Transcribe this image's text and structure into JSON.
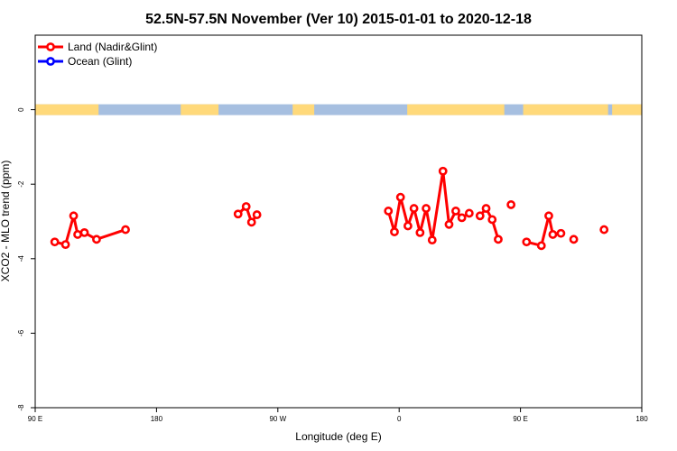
{
  "chart_data": {
    "type": "line",
    "title": "52.5N-57.5N November (Ver 10)   2015-01-01 to 2020-12-18",
    "xlabel": "Longitude (deg E)",
    "ylabel": "XCO2 - MLO trend (ppm)",
    "xlim": [
      90,
      540
    ],
    "ylim": [
      -8,
      2
    ],
    "x_ticks": [
      {
        "value": 90,
        "label": "90 E"
      },
      {
        "value": 180,
        "label": "180"
      },
      {
        "value": 270,
        "label": "90 W"
      },
      {
        "value": 360,
        "label": "0"
      },
      {
        "value": 450,
        "label": "90 E"
      },
      {
        "value": 540,
        "label": "180"
      }
    ],
    "y_ticks": [
      {
        "value": 0,
        "label": "0"
      },
      {
        "value": -2,
        "label": "-2"
      },
      {
        "value": -4,
        "label": "-4"
      },
      {
        "value": -6,
        "label": "-6"
      },
      {
        "value": -8,
        "label": "-8"
      }
    ],
    "grid": false,
    "legend_position": "top-left",
    "land_ocean_strip": {
      "y": 0,
      "land_color": "#ffd97a",
      "ocean_color": "#a6bfe0",
      "land_spans": [
        [
          90,
          137
        ],
        [
          198,
          226
        ],
        [
          281,
          297
        ],
        [
          366,
          438
        ],
        [
          452,
          515
        ],
        [
          518,
          540
        ]
      ]
    },
    "series": [
      {
        "name": "Land (Nadir&Glint)",
        "color": "#ff0000",
        "segments": [
          [
            [
              104.5,
              -3.55
            ],
            [
              112.5,
              -3.62
            ],
            [
              118.5,
              -2.85
            ],
            [
              121.5,
              -3.35
            ],
            [
              126.5,
              -3.3
            ],
            [
              135.5,
              -3.48
            ]
          ],
          [
            [
              135.5,
              -3.48
            ],
            [
              157,
              -3.22
            ]
          ],
          [
            [
              240.5,
              -2.8
            ],
            [
              246.5,
              -2.6
            ],
            [
              250.5,
              -3.02
            ],
            [
              254.5,
              -2.82
            ]
          ],
          [
            [
              352,
              -2.72
            ],
            [
              356.5,
              -3.28
            ],
            [
              361,
              -2.35
            ],
            [
              366.5,
              -3.12
            ],
            [
              371,
              -2.65
            ],
            [
              375.5,
              -3.3
            ],
            [
              380,
              -2.65
            ],
            [
              384.5,
              -3.5
            ],
            [
              392.5,
              -1.65
            ],
            [
              397,
              -3.08
            ],
            [
              402,
              -2.72
            ],
            [
              406.5,
              -2.9
            ],
            [
              412,
              -2.78
            ]
          ],
          [
            [
              420,
              -2.85
            ],
            [
              424.5,
              -2.65
            ],
            [
              429,
              -2.95
            ],
            [
              433.5,
              -3.48
            ]
          ],
          [
            [
              443,
              -2.55
            ]
          ],
          [
            [
              471,
              -2.85
            ],
            [
              474,
              -3.35
            ],
            [
              480,
              -3.32
            ]
          ],
          [
            [
              454.5,
              -3.55
            ],
            [
              465.5,
              -3.65
            ],
            [
              471,
              -2.85
            ]
          ],
          [
            [
              489.5,
              -3.48
            ]
          ],
          [
            [
              512,
              -3.22
            ]
          ]
        ]
      },
      {
        "name": "Ocean (Glint)",
        "color": "#0000ff",
        "segments": []
      }
    ]
  }
}
